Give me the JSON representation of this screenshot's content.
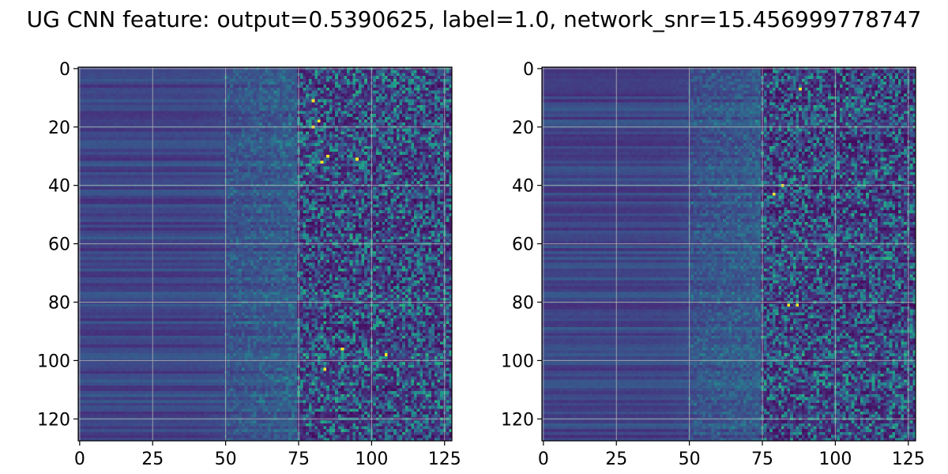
{
  "figure": {
    "title": "UG CNN feature: output=0.5390625, label=1.0, network_snr=15.456999778747"
  },
  "colormap": {
    "name": "viridis",
    "stops": [
      "#440154",
      "#482878",
      "#3e4989",
      "#31688e",
      "#26828e",
      "#1f9e89",
      "#35b779",
      "#6ece58",
      "#b5de2b",
      "#fde725"
    ]
  },
  "chart_data": [
    {
      "type": "heatmap",
      "title": "",
      "xlabel": "",
      "ylabel": "",
      "shape": [
        128,
        128
      ],
      "xlim": [
        -0.5,
        127.5
      ],
      "ylim": [
        127.5,
        -0.5
      ],
      "y_inverted": true,
      "grid": true,
      "xticks": [
        0,
        25,
        50,
        75,
        100,
        125
      ],
      "xtick_labels": [
        "0",
        "25",
        "50",
        "75",
        "100",
        "125"
      ],
      "yticks": [
        0,
        20,
        40,
        60,
        80,
        100,
        120
      ],
      "ytick_labels": [
        "0",
        "20",
        "40",
        "60",
        "80",
        "100",
        "120"
      ],
      "colormap": "viridis",
      "columns_0_to_50": "low values, horizontal banding by row",
      "columns_50_to_75": "moderate values, noisy",
      "columns_75_to_127": "high-variance noise with bright peaks",
      "bright_peaks": [
        {
          "x": 80,
          "y": 11
        },
        {
          "x": 80,
          "y": 20
        },
        {
          "x": 82,
          "y": 18
        },
        {
          "x": 85,
          "y": 30
        },
        {
          "x": 83,
          "y": 32
        },
        {
          "x": 95,
          "y": 31
        },
        {
          "x": 90,
          "y": 96
        },
        {
          "x": 105,
          "y": 98
        },
        {
          "x": 84,
          "y": 103
        }
      ]
    },
    {
      "type": "heatmap",
      "title": "",
      "xlabel": "",
      "ylabel": "",
      "shape": [
        128,
        128
      ],
      "xlim": [
        -0.5,
        127.5
      ],
      "ylim": [
        127.5,
        -0.5
      ],
      "y_inverted": true,
      "grid": true,
      "xticks": [
        0,
        25,
        50,
        75,
        100,
        125
      ],
      "xtick_labels": [
        "0",
        "25",
        "50",
        "75",
        "100",
        "125"
      ],
      "yticks": [
        0,
        20,
        40,
        60,
        80,
        100,
        120
      ],
      "ytick_labels": [
        "0",
        "20",
        "40",
        "60",
        "80",
        "100",
        "120"
      ],
      "colormap": "viridis",
      "columns_0_to_50": "low values, horizontal banding by row",
      "columns_50_to_75": "moderate values, noisy",
      "columns_75_to_127": "high-variance noise with bright peaks",
      "bright_peaks": [
        {
          "x": 82,
          "y": 40
        },
        {
          "x": 88,
          "y": 7
        },
        {
          "x": 84,
          "y": 81
        },
        {
          "x": 87,
          "y": 81
        },
        {
          "x": 79,
          "y": 43
        }
      ]
    }
  ]
}
